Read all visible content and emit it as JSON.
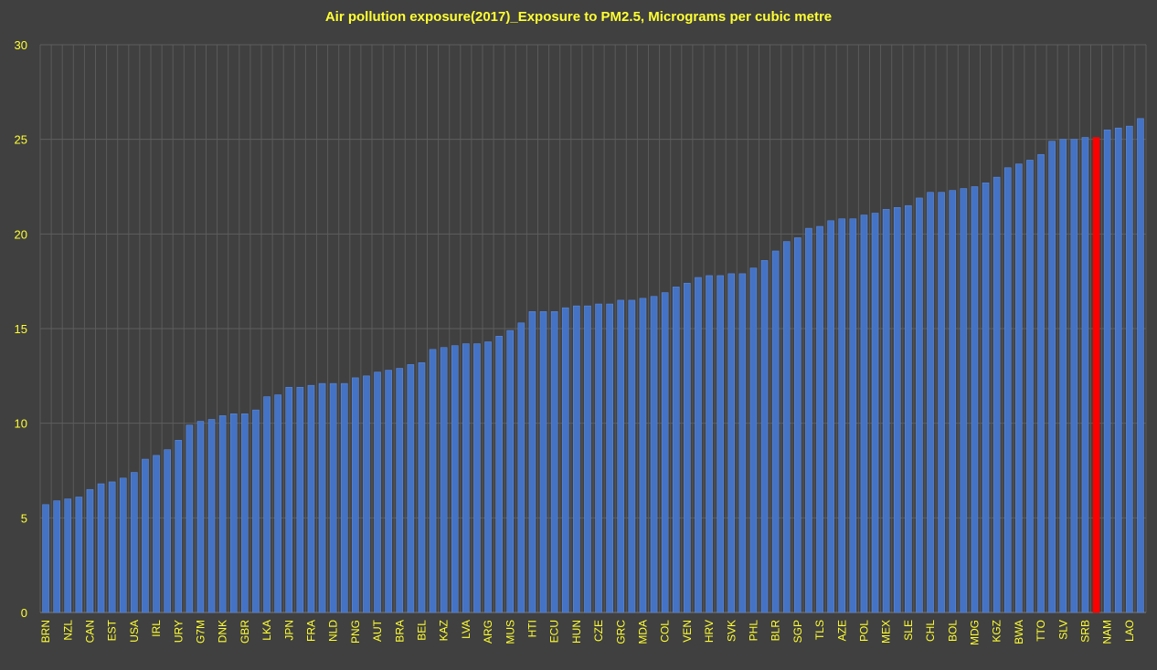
{
  "chart_data": {
    "type": "bar",
    "title": "Air pollution exposure(2017)_Exposure to PM2.5, Micrograms per cubic metre",
    "xlabel": "",
    "ylabel": "",
    "ylim": [
      0,
      30
    ],
    "yticks": [
      0,
      5,
      10,
      15,
      20,
      25,
      30
    ],
    "grid": true,
    "bar_color": "#4472c4",
    "highlight_color": "#ff0000",
    "highlight_index": 95,
    "categories": [
      "BRN",
      "",
      "NZL",
      "",
      "CAN",
      "",
      "EST",
      "",
      "USA",
      "",
      "IRL",
      "",
      "URY",
      "",
      "G7M",
      "",
      "DNK",
      "",
      "GBR",
      "",
      "LKA",
      "",
      "JPN",
      "",
      "FRA",
      "",
      "NLD",
      "",
      "PNG",
      "",
      "AUT",
      "",
      "BRA",
      "",
      "BEL",
      "",
      "KAZ",
      "",
      "LVA",
      "",
      "ARG",
      "",
      "MUS",
      "",
      "HTI",
      "",
      "ECU",
      "",
      "HUN",
      "",
      "CZE",
      "",
      "GRC",
      "",
      "MDA",
      "",
      "COL",
      "",
      "VEN",
      "",
      "HRV",
      "",
      "SVK",
      "",
      "PHL",
      "",
      "BLR",
      "",
      "SGP",
      "",
      "TLS",
      "",
      "AZE",
      "",
      "POL",
      "",
      "MEX",
      "",
      "SLE",
      "",
      "CHL",
      "",
      "BOL",
      "",
      "MDG",
      "",
      "KGZ",
      "",
      "BWA",
      "",
      "TTO",
      "",
      "SLV",
      "",
      "SRB",
      "",
      "NAM",
      "",
      "LAO",
      ""
    ],
    "values": [
      5.7,
      5.9,
      6.0,
      6.1,
      6.5,
      6.8,
      6.9,
      7.1,
      7.4,
      8.1,
      8.3,
      8.6,
      9.1,
      9.9,
      10.1,
      10.2,
      10.4,
      10.5,
      10.5,
      10.7,
      11.4,
      11.5,
      11.9,
      11.9,
      12.0,
      12.1,
      12.1,
      12.1,
      12.4,
      12.5,
      12.7,
      12.8,
      12.9,
      13.1,
      13.2,
      13.9,
      14.0,
      14.1,
      14.2,
      14.2,
      14.3,
      14.6,
      14.9,
      15.3,
      15.9,
      15.9,
      15.9,
      16.1,
      16.2,
      16.2,
      16.3,
      16.3,
      16.5,
      16.5,
      16.6,
      16.7,
      16.9,
      17.2,
      17.4,
      17.7,
      17.8,
      17.8,
      17.9,
      17.9,
      18.2,
      18.6,
      19.1,
      19.6,
      19.8,
      20.3,
      20.4,
      20.7,
      20.8,
      20.8,
      21.0,
      21.1,
      21.3,
      21.4,
      21.5,
      21.9,
      22.2,
      22.2,
      22.3,
      22.4,
      22.5,
      22.7,
      23.0,
      23.5,
      23.7,
      23.9,
      24.2,
      24.9,
      25.0,
      25.0,
      25.1,
      25.1,
      25.5,
      25.6,
      25.7,
      26.1
    ]
  }
}
